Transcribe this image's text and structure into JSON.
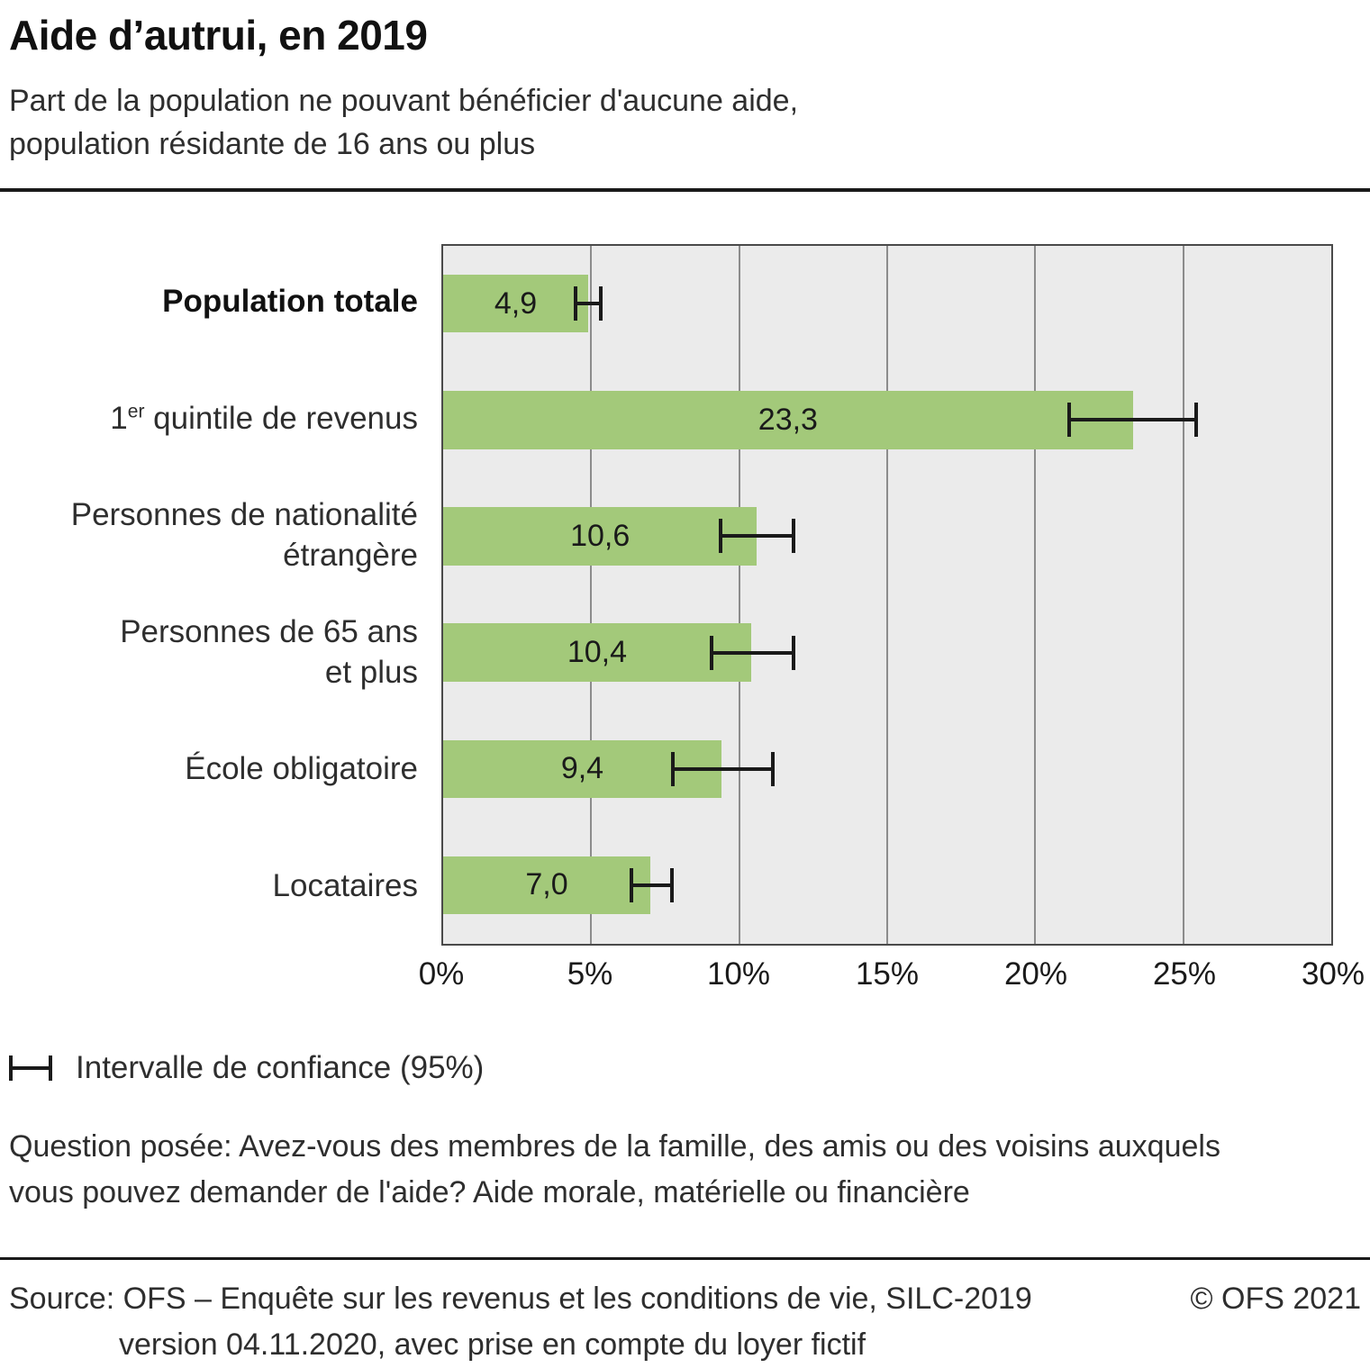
{
  "chart_data": {
    "type": "bar",
    "orientation": "horizontal",
    "title": "Aide d’autrui, en 2019",
    "subtitle": "Part de la population ne pouvant bénéficier d'aucune aide,\npopulation résidante de 16 ans ou plus",
    "categories": [
      "Population totale",
      "1{er} quintile de revenus",
      "Personnes de nationalité\nétrangère",
      "Personnes de 65 ans\net plus",
      "École obligatoire",
      "Locataires"
    ],
    "bold_categories": [
      true,
      false,
      false,
      false,
      false,
      false
    ],
    "values": [
      4.9,
      23.3,
      10.6,
      10.4,
      9.4,
      7.0
    ],
    "value_labels": [
      "4,9",
      "23,3",
      "10,6",
      "10,4",
      "9,4",
      "7,0"
    ],
    "confidence_intervals_95": [
      [
        4.4,
        5.4
      ],
      [
        21.1,
        25.5
      ],
      [
        9.3,
        11.9
      ],
      [
        9.0,
        11.9
      ],
      [
        7.7,
        11.2
      ],
      [
        6.3,
        7.8
      ]
    ],
    "x_unit": "%",
    "xlim": [
      0,
      30
    ],
    "ticks": [
      0,
      5,
      10,
      15,
      20,
      25,
      30
    ],
    "tick_labels": [
      "0%",
      "5%",
      "10%",
      "15%",
      "20%",
      "25%",
      "30%"
    ],
    "grid": true,
    "legend_position": "below",
    "bar_color": "#a3c97a",
    "plot_background": "#ebebeb",
    "grid_color": "#8c8c8c",
    "error_bar_color": "#1a1a1a"
  },
  "legend": {
    "ci_label": "Intervalle de confiance (95%)"
  },
  "note": "Question posée: Avez-vous des membres de la famille, des amis ou des voisins auxquels\nvous pouvez demander de l'aide? Aide morale, matérielle ou financière",
  "footer": {
    "source_line1": "Source: OFS – Enquête sur les revenus et les conditions de vie, SILC-2019",
    "source_line2": "version 04.11.2020, avec prise en compte du loyer fictif",
    "copyright": "© OFS 2021"
  }
}
